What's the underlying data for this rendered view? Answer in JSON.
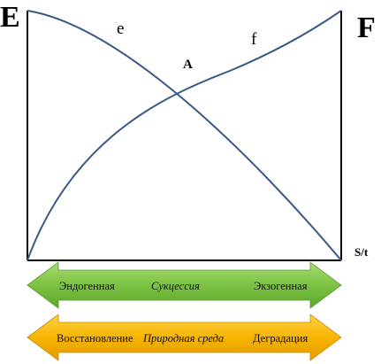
{
  "diagram": {
    "left_label": "E",
    "right_label": "F",
    "curve_e_label": "e",
    "curve_f_label": "f",
    "intersection_label": "A",
    "x_axis_label": "S/t",
    "colors": {
      "curves": "#3a5a86",
      "axes": "#000000",
      "arrow_green": "#7cc242",
      "arrow_orange": "#f7b500"
    }
  },
  "arrows": {
    "green": {
      "left": "Эндогенная",
      "center": "Сукцессия",
      "right": "Экзогенная"
    },
    "orange": {
      "left": "Восстановление",
      "center": "Природная среда",
      "right": "Деградация"
    }
  }
}
